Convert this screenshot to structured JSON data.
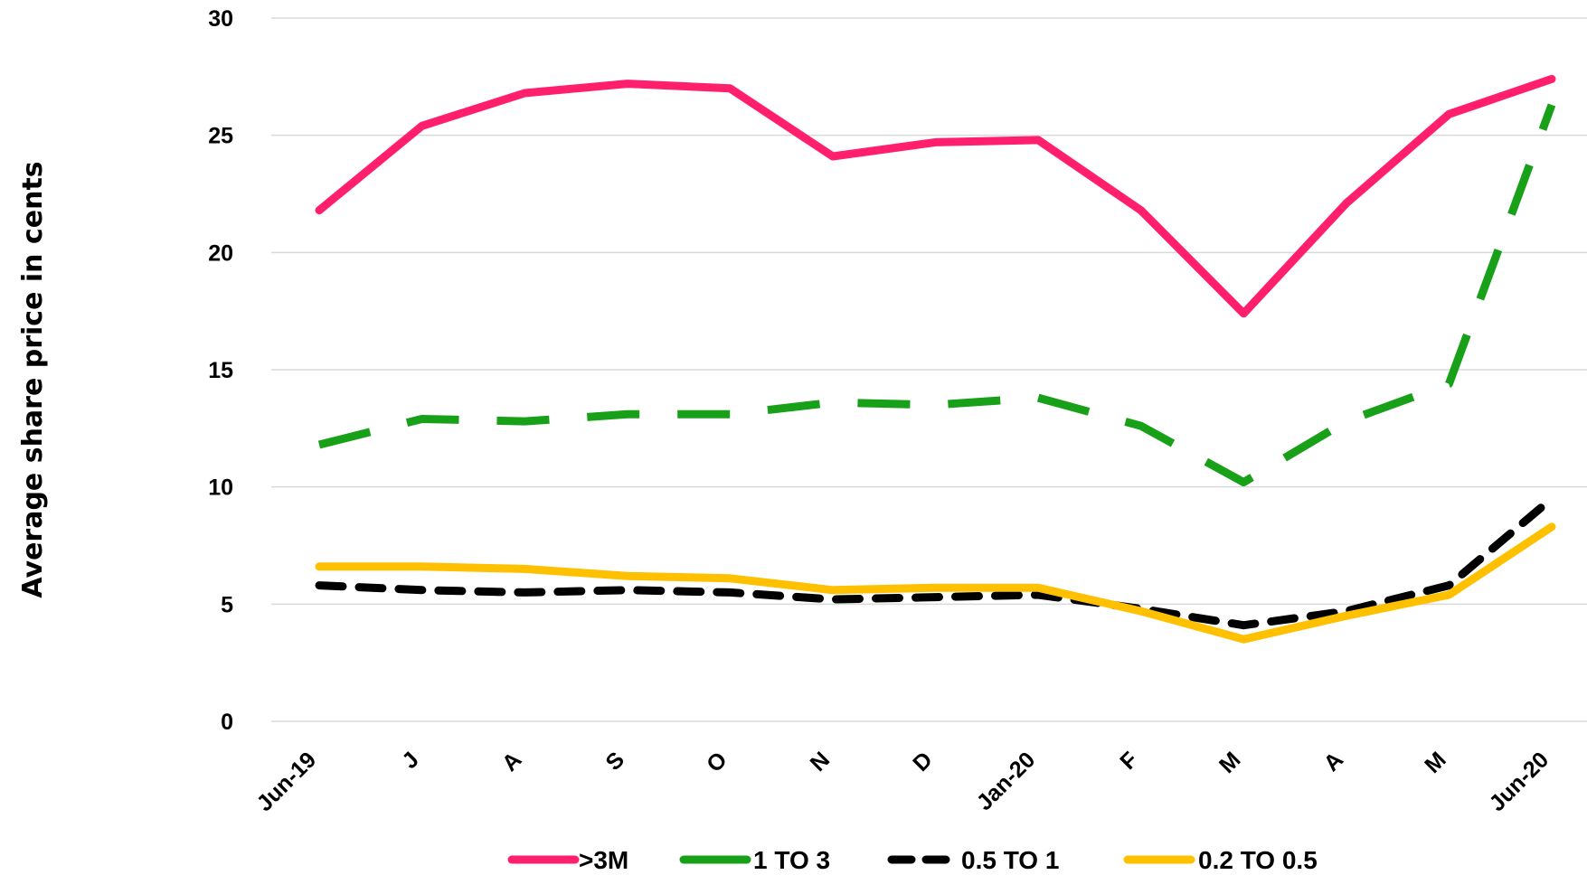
{
  "chart_data": {
    "type": "line",
    "ylabel": "Average share price in cents",
    "xlabel": "",
    "ylim": [
      0,
      30
    ],
    "yticks": [
      0,
      5,
      10,
      15,
      20,
      25,
      30
    ],
    "grid": "horizontal",
    "legend_position": "bottom",
    "categories": [
      "Jun-19",
      "J",
      "A",
      "S",
      "O",
      "N",
      "D",
      "Jan-20",
      "F",
      "M",
      "A",
      "M",
      "Jun-20"
    ],
    "series": [
      {
        "name": ">3M",
        "color": "#FF1F6D",
        "dash": "solid",
        "values": [
          21.8,
          25.4,
          26.8,
          27.2,
          27.0,
          24.1,
          24.7,
          24.8,
          21.8,
          17.4,
          22.1,
          25.9,
          27.4
        ]
      },
      {
        "name": "1 TO 3",
        "color": "#18A018",
        "dash": "dashed",
        "values": [
          11.8,
          12.9,
          12.8,
          13.1,
          13.1,
          13.6,
          13.5,
          13.8,
          12.6,
          10.2,
          12.8,
          14.4,
          26.3
        ]
      },
      {
        "name": "0.5 TO 1",
        "color": "#000000",
        "dash": "dashed",
        "values": [
          5.8,
          5.6,
          5.5,
          5.6,
          5.5,
          5.2,
          5.3,
          5.4,
          4.8,
          4.1,
          4.7,
          5.8,
          9.5
        ]
      },
      {
        "name": "0.2 TO 0.5",
        "color": "#FFC000",
        "dash": "solid",
        "values": [
          6.6,
          6.6,
          6.5,
          6.2,
          6.1,
          5.6,
          5.7,
          5.7,
          4.7,
          3.5,
          4.5,
          5.4,
          8.3
        ]
      }
    ]
  }
}
